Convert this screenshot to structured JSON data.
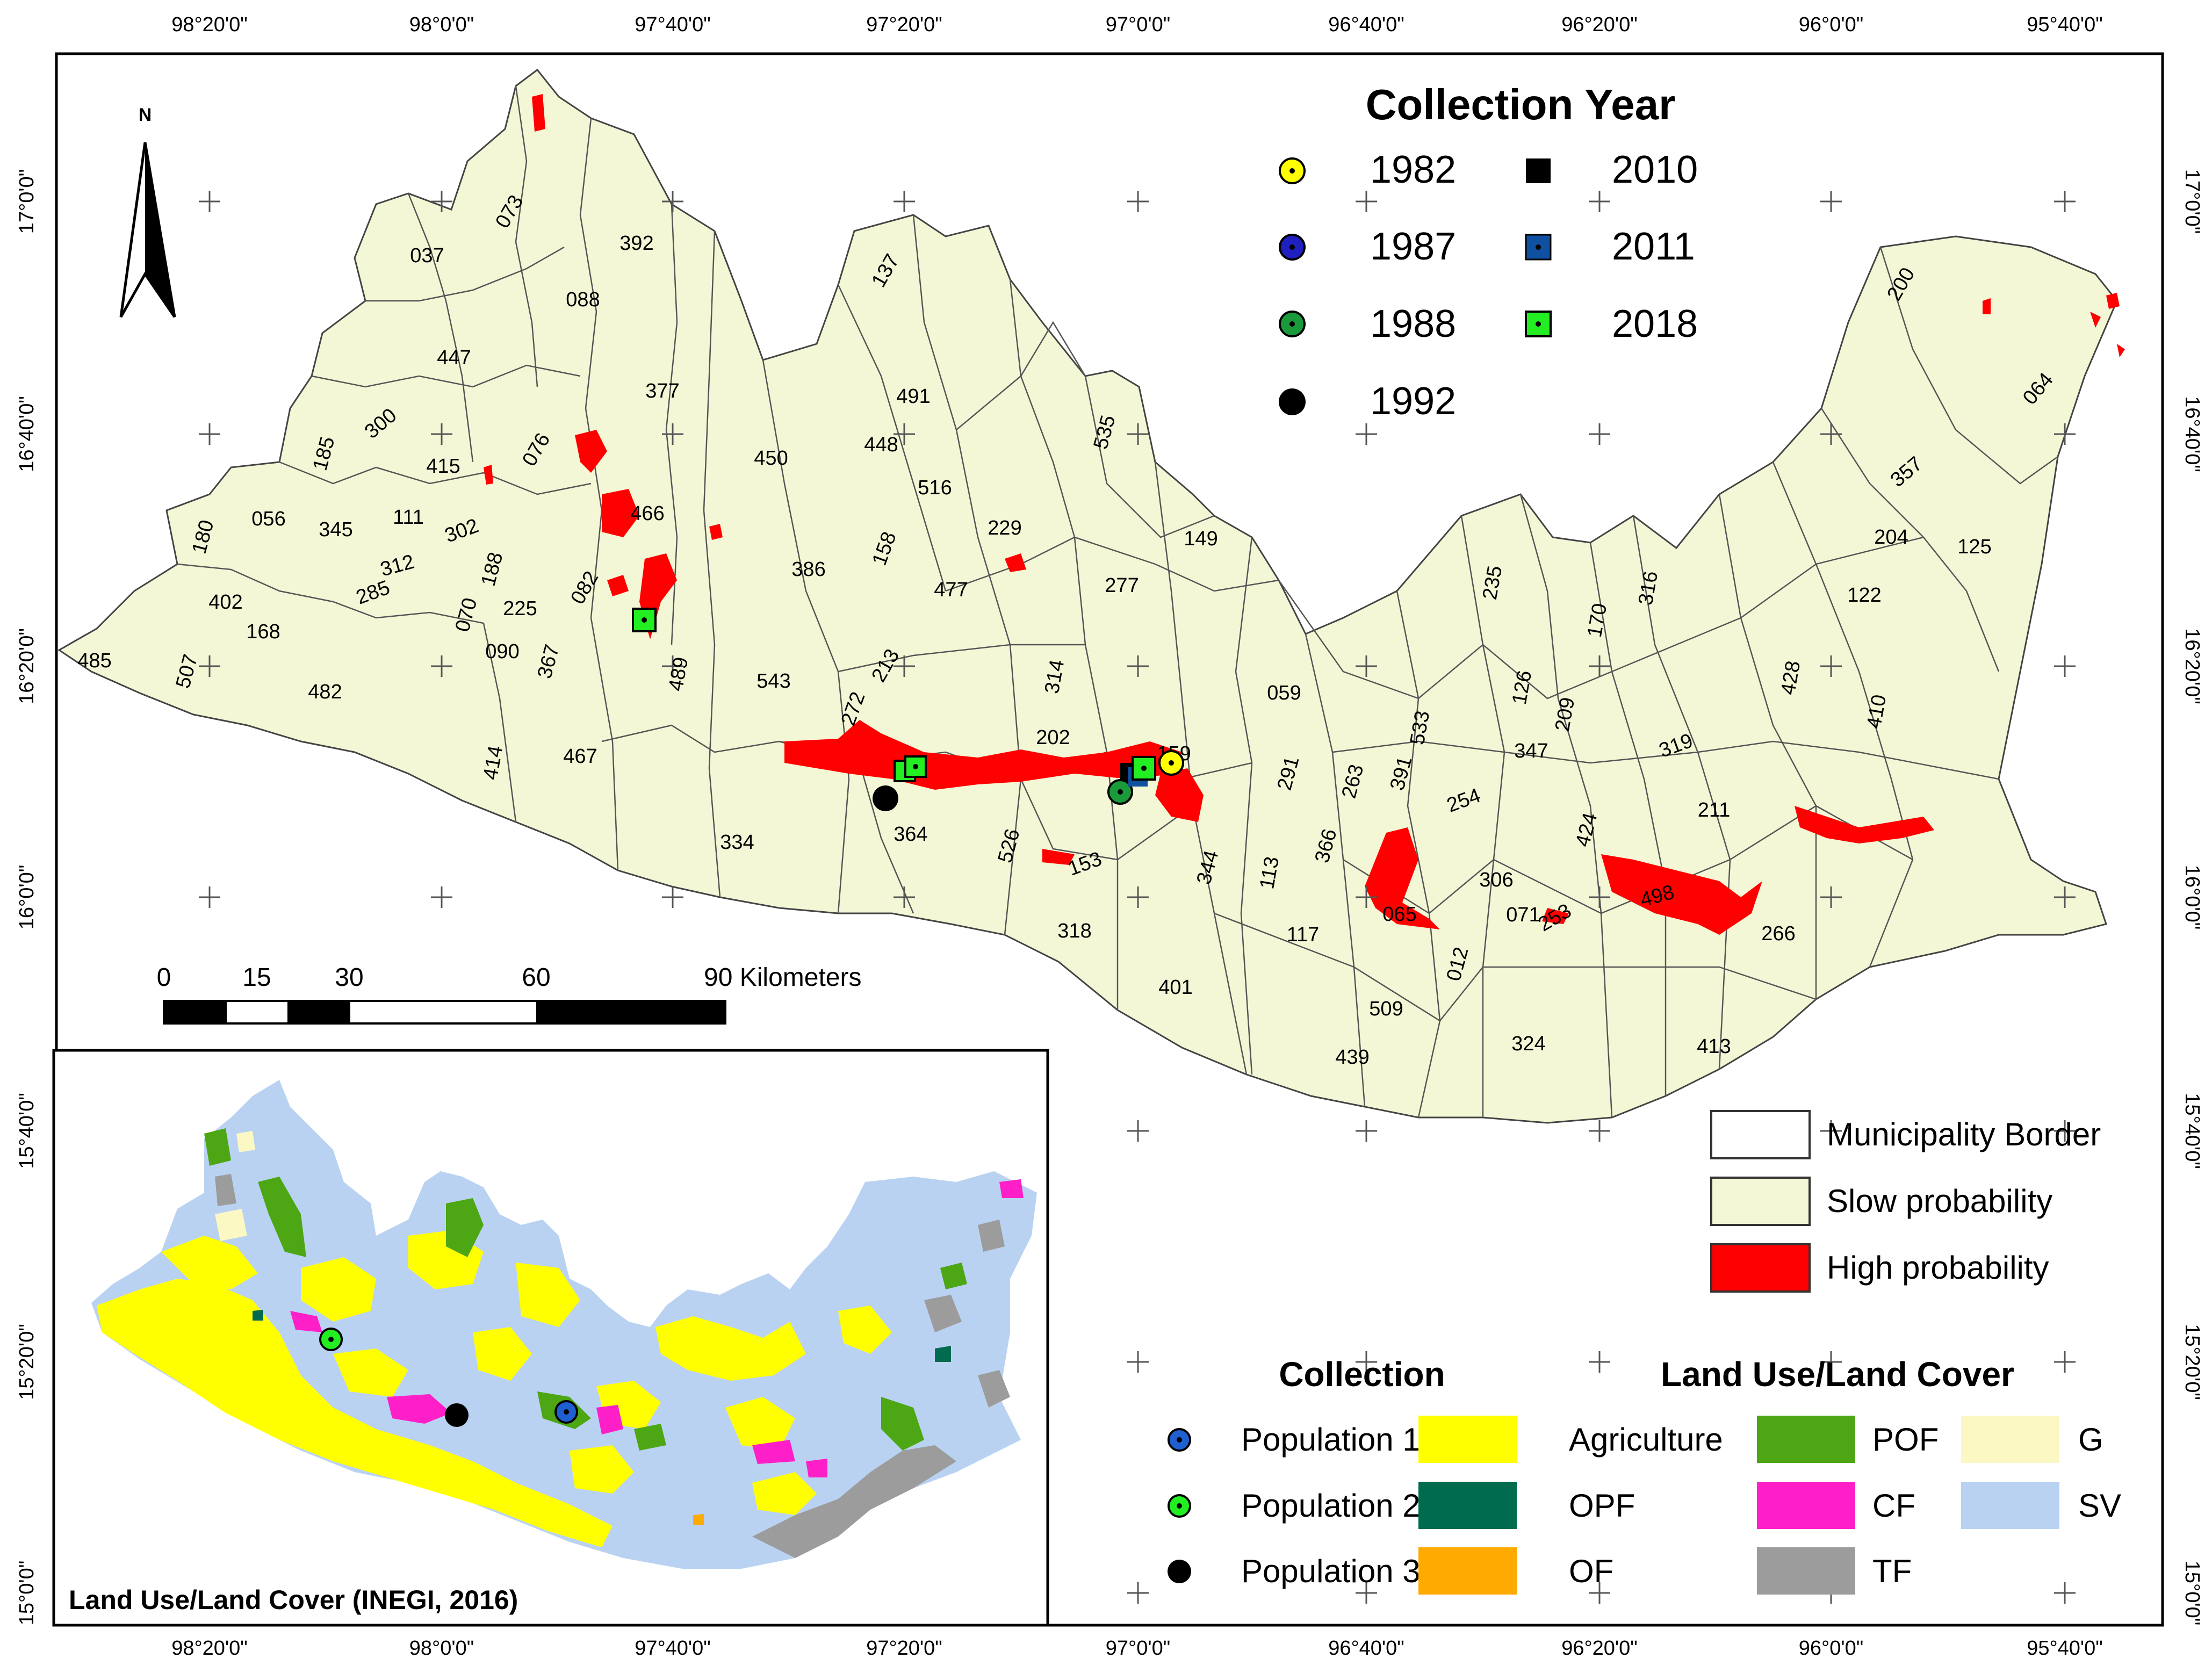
{
  "top_ticks": [
    "98°20'0\"",
    "98°0'0\"",
    "97°40'0\"",
    "97°20'0\"",
    "97°0'0\"",
    "96°40'0\"",
    "96°20'0\"",
    "96°0'0\"",
    "95°40'0\""
  ],
  "bottom_ticks": [
    "98°20'0\"",
    "98°0'0\"",
    "97°40'0\"",
    "97°20'0\"",
    "97°0'0\"",
    "96°40'0\"",
    "96°20'0\"",
    "96°0'0\"",
    "95°40'0\""
  ],
  "left_ticks": [
    "17°0'0\"",
    "16°40'0\"",
    "16°20'0\"",
    "16°0'0\"",
    "15°40'0\"",
    "15°20'0\"",
    "15°0'0\""
  ],
  "right_ticks": [
    "17°0'0\"",
    "16°40'0\"",
    "16°20'0\"",
    "16°0'0\"",
    "15°40'0\"",
    "15°20'0\"",
    "15°0'0\""
  ],
  "north_label": "N",
  "collection_year": {
    "title": "Collection Year",
    "entries": [
      {
        "year": "1982",
        "color": "#ffff00",
        "dot": true
      },
      {
        "year": "1987",
        "color": "#2020c0",
        "dot": true
      },
      {
        "year": "1988",
        "color": "#1a9a3a",
        "dot": true
      },
      {
        "year": "1992",
        "color": "#000000",
        "dot": false
      },
      {
        "year": "2010",
        "color": "#000000",
        "dot": false
      },
      {
        "year": "2011",
        "color": "#1050a0",
        "dot": true
      },
      {
        "year": "2018",
        "color": "#22ee22",
        "dot": true
      }
    ]
  },
  "scale_bar": {
    "labels": [
      "0",
      "15",
      "30",
      "60",
      "90 Kilometers"
    ]
  },
  "municipalities": [
    "073",
    "037",
    "392",
    "088",
    "447",
    "137",
    "377",
    "491",
    "076",
    "185",
    "300",
    "415",
    "448",
    "535",
    "450",
    "516",
    "466",
    "056",
    "345",
    "111",
    "302",
    "180",
    "149",
    "229",
    "158",
    "386",
    "312",
    "188",
    "285",
    "082",
    "277",
    "402",
    "070",
    "225",
    "168",
    "090",
    "367",
    "477",
    "485",
    "507",
    "482",
    "213",
    "059",
    "489",
    "543",
    "314",
    "272",
    "202",
    "159",
    "414",
    "467",
    "364",
    "291",
    "533",
    "391",
    "263",
    "254",
    "347",
    "334",
    "526",
    "153",
    "344",
    "113",
    "366",
    "065",
    "306",
    "071",
    "424",
    "498",
    "117",
    "012",
    "253",
    "266",
    "318",
    "401",
    "509",
    "439",
    "324",
    "413",
    "235",
    "170",
    "316",
    "126",
    "209",
    "319",
    "211",
    "428",
    "410",
    "200",
    "064",
    "357",
    "204",
    "125",
    "122"
  ],
  "legend_probability": [
    {
      "label": "Municipality Border",
      "color": "#ffffff"
    },
    {
      "label": "Slow probability",
      "color": "#f4f7d6"
    },
    {
      "label": "High probability",
      "color": "#ff0000"
    }
  ],
  "collection_legend": {
    "title": "Collection",
    "entries": [
      {
        "label": "Population 1",
        "color": "#1f5fd0"
      },
      {
        "label": "Population 2",
        "color": "#22ee22"
      },
      {
        "label": "Population 3",
        "color": "#000000"
      }
    ]
  },
  "land_use_legend": {
    "title": "Land Use/Land Cover",
    "entries": [
      {
        "label": "Agriculture",
        "color": "#ffff00"
      },
      {
        "label": "POF",
        "color": "#4da614"
      },
      {
        "label": "G",
        "color": "#fbf8c4"
      },
      {
        "label": "OPF",
        "color": "#006b4f"
      },
      {
        "label": "CF",
        "color": "#ff1fc8"
      },
      {
        "label": "SV",
        "color": "#bad2f2"
      },
      {
        "label": "OF",
        "color": "#ffaa00"
      },
      {
        "label": "TF",
        "color": "#9c9c9c"
      }
    ]
  },
  "inset_title": "Land Use/Land Cover (INEGI, 2016)",
  "colors": {
    "region_fill": "#f4f7d6",
    "high_probability": "#ff0000",
    "sv": "#bad2f2",
    "agriculture": "#ffff00"
  }
}
